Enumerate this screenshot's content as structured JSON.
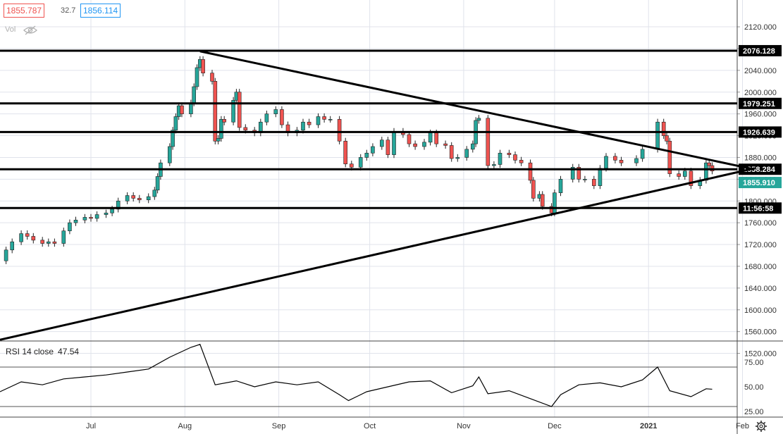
{
  "header": {
    "bid": "1855.787",
    "spread": "32.7",
    "ask": "1856.114",
    "volume_label": "Vol"
  },
  "rsi": {
    "label": "RSI 14 close",
    "value": "47.54"
  },
  "colors": {
    "up": "#26a69a",
    "down": "#ef5350",
    "line": "#000000",
    "grid": "#e0e3eb"
  },
  "chart_data": [
    {
      "type": "candlestick",
      "title": "",
      "ylim": [
        1500,
        2130
      ],
      "y_ticks": [
        "2120.000",
        "2080.000",
        "2040.000",
        "2000.000",
        "1960.000",
        "1920.000",
        "1880.000",
        "1840.000",
        "1800.000",
        "1760.000",
        "1720.000",
        "1680.000",
        "1640.000",
        "1600.000",
        "1560.000",
        "1520.000"
      ],
      "x_ticks": [
        "Jul",
        "Aug",
        "Sep",
        "Oct",
        "Nov",
        "Dec",
        "2021",
        "Feb"
      ],
      "x_start": "2020-06-01",
      "x_end": "2021-02-10",
      "horizontal_levels": [
        {
          "label": "2076.128",
          "value": 2076.128
        },
        {
          "label": "1979.251",
          "value": 1979.251
        },
        {
          "label": "1926.639",
          "value": 1926.639
        },
        {
          "label": "1858.284",
          "value": 1858.284
        },
        {
          "label": "11:56:58",
          "value": 1787
        }
      ],
      "current_price": {
        "label": "1855.910",
        "value": 1855.91
      },
      "trendlines": [
        {
          "from": [
            "2020-08-06",
            2075
          ],
          "to": [
            "2021-02-05",
            1858
          ]
        },
        {
          "from": [
            "2020-06-01",
            1545
          ],
          "to": [
            "2021-02-05",
            1860
          ]
        }
      ],
      "close_series": [
        [
          "2020-06-01",
          1690
        ],
        [
          "2020-06-03",
          1710
        ],
        [
          "2020-06-05",
          1725
        ],
        [
          "2020-06-08",
          1740
        ],
        [
          "2020-06-10",
          1735
        ],
        [
          "2020-06-12",
          1728
        ],
        [
          "2020-06-15",
          1722
        ],
        [
          "2020-06-17",
          1725
        ],
        [
          "2020-06-19",
          1722
        ],
        [
          "2020-06-22",
          1745
        ],
        [
          "2020-06-24",
          1760
        ],
        [
          "2020-06-26",
          1765
        ],
        [
          "2020-06-29",
          1770
        ],
        [
          "2020-07-01",
          1768
        ],
        [
          "2020-07-03",
          1775
        ],
        [
          "2020-07-06",
          1778
        ],
        [
          "2020-07-08",
          1785
        ],
        [
          "2020-07-10",
          1800
        ],
        [
          "2020-07-13",
          1810
        ],
        [
          "2020-07-15",
          1805
        ],
        [
          "2020-07-17",
          1802
        ],
        [
          "2020-07-20",
          1808
        ],
        [
          "2020-07-22",
          1820
        ],
        [
          "2020-07-23",
          1845
        ],
        [
          "2020-07-24",
          1870
        ],
        [
          "2020-07-27",
          1900
        ],
        [
          "2020-07-28",
          1930
        ],
        [
          "2020-07-29",
          1955
        ],
        [
          "2020-07-30",
          1975
        ],
        [
          "2020-07-31",
          1960
        ],
        [
          "2020-08-03",
          1980
        ],
        [
          "2020-08-04",
          2010
        ],
        [
          "2020-08-05",
          2045
        ],
        [
          "2020-08-06",
          2060
        ],
        [
          "2020-08-07",
          2035
        ],
        [
          "2020-08-10",
          2020
        ],
        [
          "2020-08-11",
          1910
        ],
        [
          "2020-08-12",
          1915
        ],
        [
          "2020-08-13",
          1950
        ],
        [
          "2020-08-14",
          1945
        ],
        [
          "2020-08-17",
          1985
        ],
        [
          "2020-08-18",
          2000
        ],
        [
          "2020-08-19",
          1935
        ],
        [
          "2020-08-21",
          1930
        ],
        [
          "2020-08-24",
          1925
        ],
        [
          "2020-08-26",
          1945
        ],
        [
          "2020-08-28",
          1960
        ],
        [
          "2020-08-31",
          1968
        ],
        [
          "2020-09-02",
          1940
        ],
        [
          "2020-09-04",
          1925
        ],
        [
          "2020-09-07",
          1930
        ],
        [
          "2020-09-09",
          1945
        ],
        [
          "2020-09-11",
          1940
        ],
        [
          "2020-09-14",
          1955
        ],
        [
          "2020-09-16",
          1950
        ],
        [
          "2020-09-18",
          1950
        ],
        [
          "2020-09-21",
          1910
        ],
        [
          "2020-09-23",
          1868
        ],
        [
          "2020-09-25",
          1862
        ],
        [
          "2020-09-28",
          1880
        ],
        [
          "2020-09-30",
          1888
        ],
        [
          "2020-10-02",
          1900
        ],
        [
          "2020-10-05",
          1912
        ],
        [
          "2020-10-07",
          1885
        ],
        [
          "2020-10-09",
          1928
        ],
        [
          "2020-10-12",
          1922
        ],
        [
          "2020-10-14",
          1905
        ],
        [
          "2020-10-16",
          1900
        ],
        [
          "2020-10-19",
          1908
        ],
        [
          "2020-10-21",
          1925
        ],
        [
          "2020-10-23",
          1905
        ],
        [
          "2020-10-26",
          1902
        ],
        [
          "2020-10-28",
          1878
        ],
        [
          "2020-10-30",
          1880
        ],
        [
          "2020-11-02",
          1895
        ],
        [
          "2020-11-04",
          1905
        ],
        [
          "2020-11-05",
          1948
        ],
        [
          "2020-11-06",
          1952
        ],
        [
          "2020-11-09",
          1865
        ],
        [
          "2020-11-11",
          1867
        ],
        [
          "2020-11-13",
          1888
        ],
        [
          "2020-11-16",
          1885
        ],
        [
          "2020-11-18",
          1875
        ],
        [
          "2020-11-20",
          1870
        ],
        [
          "2020-11-23",
          1838
        ],
        [
          "2020-11-24",
          1805
        ],
        [
          "2020-11-26",
          1812
        ],
        [
          "2020-11-27",
          1790
        ],
        [
          "2020-11-30",
          1778
        ],
        [
          "2020-12-01",
          1815
        ],
        [
          "2020-12-03",
          1840
        ],
        [
          "2020-12-07",
          1862
        ],
        [
          "2020-12-09",
          1840
        ],
        [
          "2020-12-11",
          1840
        ],
        [
          "2020-12-14",
          1828
        ],
        [
          "2020-12-16",
          1860
        ],
        [
          "2020-12-18",
          1882
        ],
        [
          "2020-12-21",
          1875
        ],
        [
          "2020-12-23",
          1870
        ],
        [
          "2020-12-28",
          1878
        ],
        [
          "2020-12-30",
          1895
        ],
        [
          "2021-01-04",
          1945
        ],
        [
          "2021-01-06",
          1920
        ],
        [
          "2021-01-07",
          1910
        ],
        [
          "2021-01-08",
          1850
        ],
        [
          "2021-01-11",
          1845
        ],
        [
          "2021-01-13",
          1855
        ],
        [
          "2021-01-15",
          1828
        ],
        [
          "2021-01-18",
          1838
        ],
        [
          "2021-01-20",
          1870
        ],
        [
          "2021-01-21",
          1865
        ],
        [
          "2021-01-22",
          1855
        ]
      ]
    },
    {
      "type": "line",
      "name": "RSI 14 close",
      "ylim": [
        22,
        95
      ],
      "y_ticks": [
        "75.00",
        "50.00",
        "25.00"
      ],
      "levels": [
        70,
        30
      ],
      "values": [
        [
          "2020-06-01",
          45
        ],
        [
          "2020-06-08",
          55
        ],
        [
          "2020-06-15",
          52
        ],
        [
          "2020-06-22",
          58
        ],
        [
          "2020-06-29",
          60
        ],
        [
          "2020-07-06",
          62
        ],
        [
          "2020-07-13",
          65
        ],
        [
          "2020-07-20",
          68
        ],
        [
          "2020-07-27",
          80
        ],
        [
          "2020-08-03",
          90
        ],
        [
          "2020-08-06",
          93
        ],
        [
          "2020-08-11",
          52
        ],
        [
          "2020-08-18",
          56
        ],
        [
          "2020-08-24",
          50
        ],
        [
          "2020-08-31",
          55
        ],
        [
          "2020-09-07",
          52
        ],
        [
          "2020-09-14",
          55
        ],
        [
          "2020-09-21",
          42
        ],
        [
          "2020-09-24",
          36
        ],
        [
          "2020-09-30",
          45
        ],
        [
          "2020-10-07",
          50
        ],
        [
          "2020-10-14",
          55
        ],
        [
          "2020-10-21",
          56
        ],
        [
          "2020-10-28",
          44
        ],
        [
          "2020-11-04",
          51
        ],
        [
          "2020-11-06",
          60
        ],
        [
          "2020-11-09",
          43
        ],
        [
          "2020-11-16",
          46
        ],
        [
          "2020-11-23",
          38
        ],
        [
          "2020-11-30",
          30
        ],
        [
          "2020-12-03",
          42
        ],
        [
          "2020-12-09",
          52
        ],
        [
          "2020-12-16",
          54
        ],
        [
          "2020-12-23",
          50
        ],
        [
          "2020-12-30",
          57
        ],
        [
          "2021-01-04",
          70
        ],
        [
          "2021-01-08",
          46
        ],
        [
          "2021-01-15",
          40
        ],
        [
          "2021-01-20",
          48
        ],
        [
          "2021-01-22",
          47.54
        ]
      ]
    }
  ]
}
